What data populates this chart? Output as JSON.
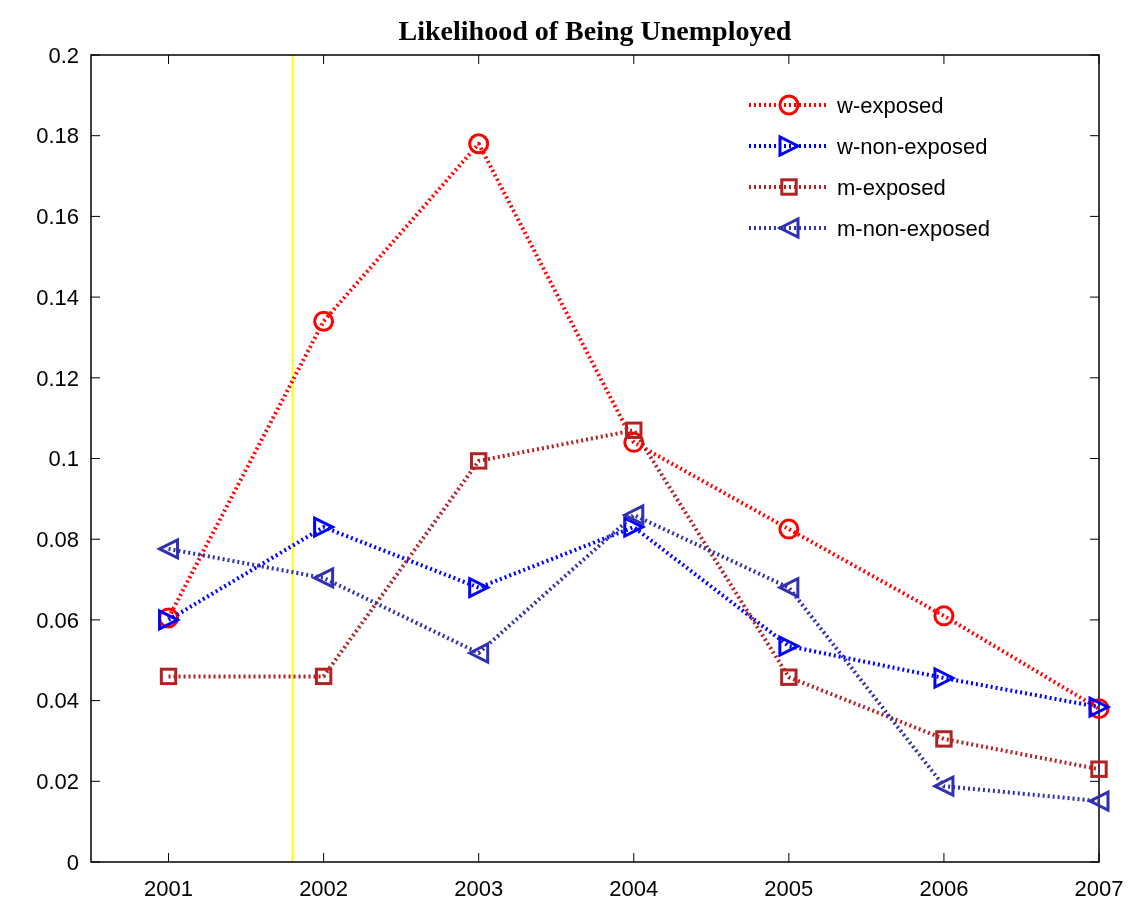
{
  "chart_data": {
    "type": "line",
    "title": "Likelihood of Being Unemployed",
    "x": [
      2001,
      2002,
      2003,
      2004,
      2005,
      2006,
      2007
    ],
    "xlim": [
      2000.5,
      2007
    ],
    "xticks": [
      2001,
      2002,
      2003,
      2004,
      2005,
      2006,
      2007
    ],
    "ylim": [
      0,
      0.2
    ],
    "yticks": [
      0,
      0.02,
      0.04,
      0.06,
      0.08,
      0.1,
      0.12,
      0.14,
      0.16,
      0.18,
      0.2
    ],
    "series": [
      {
        "name": "w-exposed",
        "color": "#ff0000",
        "marker": "circle",
        "values": [
          0.0605,
          0.134,
          0.178,
          0.104,
          0.0825,
          0.061,
          0.038
        ]
      },
      {
        "name": "w-non-exposed",
        "color": "#0000ff",
        "marker": "triangle-right",
        "values": [
          0.06,
          0.083,
          0.068,
          0.083,
          0.0535,
          0.0456,
          0.0384
        ]
      },
      {
        "name": "m-exposed",
        "color": "#b22222",
        "marker": "square",
        "values": [
          0.046,
          0.046,
          0.0994,
          0.107,
          0.0458,
          0.0305,
          0.023
        ]
      },
      {
        "name": "m-non-exposed",
        "color": "#3030b0",
        "marker": "triangle-left",
        "values": [
          0.0776,
          0.0704,
          0.0518,
          0.086,
          0.068,
          0.0188,
          0.0151
        ]
      }
    ],
    "ref_lines": [
      {
        "axis": "x",
        "value": 2001.8,
        "color": "#ffff00"
      }
    ],
    "line_style": "dotted",
    "grid": false,
    "legend": "top right"
  }
}
